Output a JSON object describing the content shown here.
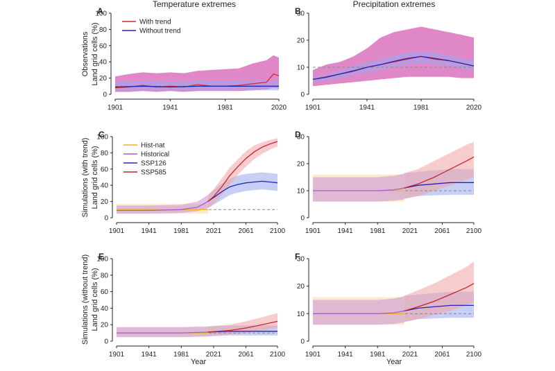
{
  "chart_data": {
    "type": "line",
    "column_titles": [
      "Temperature extremes",
      "Precipitation extremes"
    ],
    "row_ylabels": [
      [
        "Observations",
        "Land grid cells (%)"
      ],
      [
        "Simulations (with trend)",
        "Land grid cells (%)"
      ],
      [
        "Simulations (without trend)",
        "Land grid cells (%)"
      ]
    ],
    "xlabel": "Year",
    "colors": {
      "with_trend": "#d42a3a",
      "without_trend": "#2424b8",
      "hist_nat": "#f0b429",
      "historical": "#a65ccf",
      "ssp126": "#2424b8",
      "ssp585": "#c0262e",
      "band_obs": "#d65fb4",
      "band_hist_nat": "#f7d8a0",
      "band_historical": "#c98fd8",
      "band_ssp126": "#9aa8ee",
      "band_ssp585": "#f0a3a3",
      "reference": "#888888"
    },
    "panels": [
      {
        "letter": "A",
        "xticks": [
          "1901",
          "1941",
          "1981",
          "2020"
        ],
        "yticks": [
          "0",
          "20",
          "40",
          "60",
          "80",
          "100"
        ],
        "xlim": [
          1901,
          2020
        ],
        "ylim": [
          0,
          100
        ],
        "legend": [
          "With trend",
          "Without trend"
        ],
        "reference_line": 10,
        "series": [
          {
            "name": "With trend",
            "x": [
              1901,
              1911,
              1921,
              1931,
              1941,
              1951,
              1961,
              1971,
              1981,
              1991,
              2001,
              2011,
              2016,
              2020
            ],
            "y": [
              8,
              9,
              11,
              9,
              10,
              9,
              12,
              10,
              10,
              11,
              13,
              15,
              25,
              23
            ],
            "band_lo": [
              3,
              3,
              4,
              3,
              4,
              3,
              4,
              4,
              4,
              4,
              5,
              6,
              8,
              7
            ],
            "band_hi": [
              22,
              25,
              27,
              26,
              27,
              26,
              29,
              30,
              31,
              32,
              38,
              42,
              48,
              45
            ]
          },
          {
            "name": "Without trend",
            "x": [
              1901,
              1921,
              1941,
              1961,
              1981,
              2001,
              2020
            ],
            "y": [
              9,
              10,
              9,
              10,
              10,
              10,
              10
            ],
            "band_lo": [
              5,
              5,
              5,
              5,
              5,
              5,
              5
            ],
            "band_hi": [
              16,
              17,
              16,
              17,
              17,
              17,
              17
            ]
          }
        ]
      },
      {
        "letter": "B",
        "xticks": [
          "1901",
          "1941",
          "1981",
          "2020"
        ],
        "yticks": [
          "0",
          "10",
          "20",
          "30"
        ],
        "xlim": [
          1901,
          2020
        ],
        "ylim": [
          0,
          30
        ],
        "legend": [],
        "reference_line": 10,
        "series": [
          {
            "name": "With trend",
            "x": [
              1901,
              1911,
              1921,
              1931,
              1941,
              1951,
              1961,
              1971,
              1981,
              1991,
              2001,
              2011,
              2020
            ],
            "y": [
              5.5,
              6.5,
              7.5,
              8.5,
              10,
              11,
              12,
              13,
              14,
              13,
              12.5,
              11.5,
              10.5
            ],
            "band_lo": [
              3,
              3.5,
              4,
              4.5,
              5,
              5.5,
              6,
              6.5,
              6.5,
              6.5,
              6.5,
              6,
              6
            ],
            "band_hi": [
              9,
              11,
              12,
              14,
              17,
              21,
              23,
              24,
              25,
              24,
              23,
              22,
              21
            ]
          },
          {
            "name": "Without trend",
            "x": [
              1901,
              1911,
              1921,
              1931,
              1941,
              1951,
              1961,
              1971,
              1981,
              1991,
              2001,
              2011,
              2020
            ],
            "y": [
              5.5,
              6.3,
              7.5,
              8.7,
              10,
              11,
              12.2,
              13.3,
              14,
              13.3,
              12.5,
              11.5,
              10.5
            ],
            "band_lo": [
              4.5,
              5,
              6,
              7,
              8,
              9,
              10,
              11,
              11.5,
              11,
              10.5,
              9.5,
              9
            ],
            "band_hi": [
              6.5,
              7.5,
              9,
              10.5,
              12,
              13,
              14.5,
              15.5,
              16,
              15.5,
              14.5,
              13.5,
              12.5
            ]
          }
        ]
      },
      {
        "letter": "C",
        "xticks": [
          "1901",
          "1941",
          "1981",
          "2021",
          "2061",
          "2100"
        ],
        "yticks": [
          "0",
          "20",
          "40",
          "60",
          "80",
          "100"
        ],
        "xlim": [
          1901,
          2100
        ],
        "ylim": [
          0,
          100
        ],
        "legend": [
          "Hist-nat",
          "Historical",
          "SSP126",
          "SSP585"
        ],
        "reference_line": 10,
        "series": [
          {
            "name": "Hist-nat",
            "x": [
              1901,
              1941,
              1981,
              2014
            ],
            "y": [
              10,
              10,
              10,
              10
            ],
            "band_lo": [
              5,
              5,
              5,
              5
            ],
            "band_hi": [
              17,
              17,
              17,
              17
            ]
          },
          {
            "name": "Historical",
            "x": [
              1901,
              1941,
              1981,
              2001,
              2014
            ],
            "y": [
              9,
              9,
              10,
              13,
              20
            ],
            "band_lo": [
              5,
              5,
              6,
              8,
              12
            ],
            "band_hi": [
              15,
              15,
              16,
              20,
              28
            ]
          },
          {
            "name": "SSP126",
            "x": [
              2014,
              2021,
              2031,
              2041,
              2051,
              2061,
              2071,
              2081,
              2091,
              2100
            ],
            "y": [
              20,
              25,
              32,
              38,
              41,
              43,
              44,
              45,
              44,
              43
            ],
            "band_lo": [
              12,
              16,
              22,
              28,
              31,
              33,
              34,
              35,
              34,
              33
            ],
            "band_hi": [
              28,
              34,
              42,
              48,
              52,
              54,
              55,
              56,
              55,
              54
            ]
          },
          {
            "name": "SSP585",
            "x": [
              2014,
              2021,
              2031,
              2041,
              2051,
              2061,
              2071,
              2081,
              2091,
              2100
            ],
            "y": [
              20,
              26,
              38,
              52,
              63,
              73,
              81,
              87,
              91,
              94
            ],
            "band_lo": [
              12,
              17,
              28,
              41,
              53,
              63,
              72,
              79,
              84,
              88
            ],
            "band_hi": [
              28,
              35,
              48,
              62,
              72,
              82,
              89,
              93,
              96,
              98
            ]
          }
        ]
      },
      {
        "letter": "D",
        "xticks": [
          "1901",
          "1941",
          "1981",
          "2021",
          "2061",
          "2100"
        ],
        "yticks": [
          "0",
          "10",
          "20",
          "30"
        ],
        "xlim": [
          1901,
          2100
        ],
        "ylim": [
          0,
          30
        ],
        "legend": [],
        "reference_line": 10,
        "series": [
          {
            "name": "Hist-nat",
            "x": [
              1901,
              1941,
              1981,
              2014
            ],
            "y": [
              10,
              10,
              10,
              10
            ],
            "band_lo": [
              6,
              6,
              6,
              6
            ],
            "band_hi": [
              16,
              16,
              16,
              16
            ]
          },
          {
            "name": "Historical",
            "x": [
              1901,
              1941,
              1981,
              2001,
              2014
            ],
            "y": [
              10,
              10,
              10,
              10.3,
              11
            ],
            "band_lo": [
              6,
              6,
              6,
              6.3,
              6.8
            ],
            "band_hi": [
              15,
              15,
              15,
              15.5,
              16.3
            ]
          },
          {
            "name": "SSP126",
            "x": [
              2014,
              2031,
              2051,
              2071,
              2091,
              2100
            ],
            "y": [
              11,
              12,
              12.5,
              13,
              13,
              13
            ],
            "band_lo": [
              7,
              8,
              8.3,
              8.5,
              8.5,
              8.5
            ],
            "band_hi": [
              16.5,
              17,
              17.5,
              18,
              18,
              18
            ]
          },
          {
            "name": "SSP585",
            "x": [
              2014,
              2031,
              2051,
              2071,
              2091,
              2100
            ],
            "y": [
              11,
              12.5,
              15,
              18,
              21,
              22.5
            ],
            "band_lo": [
              7,
              8,
              10,
              12,
              14,
              15
            ],
            "band_hi": [
              16.5,
              18,
              21,
              24,
              27,
              28
            ]
          }
        ]
      },
      {
        "letter": "E",
        "xticks": [
          "1901",
          "1941",
          "1981",
          "2021",
          "2061",
          "2100"
        ],
        "yticks": [
          "0",
          "20",
          "40",
          "60",
          "80",
          "100"
        ],
        "xlim": [
          1901,
          2100
        ],
        "ylim": [
          0,
          100
        ],
        "legend": [],
        "reference_line": 10,
        "series": [
          {
            "name": "Hist-nat",
            "x": [
              1901,
              1941,
              1981,
              2014
            ],
            "y": [
              10,
              10,
              10,
              10
            ],
            "band_lo": [
              5,
              5,
              5,
              5
            ],
            "band_hi": [
              17,
              17,
              17,
              17
            ]
          },
          {
            "name": "Historical",
            "x": [
              1901,
              1941,
              1981,
              2014
            ],
            "y": [
              10,
              10,
              10,
              11
            ],
            "band_lo": [
              5,
              5,
              5,
              6
            ],
            "band_hi": [
              17,
              17,
              17,
              18
            ]
          },
          {
            "name": "SSP126",
            "x": [
              2014,
              2041,
              2061,
              2081,
              2100
            ],
            "y": [
              11,
              12,
              12,
              12,
              12
            ],
            "band_lo": [
              6,
              7,
              7,
              7,
              7
            ],
            "band_hi": [
              18,
              19,
              19,
              19,
              19
            ]
          },
          {
            "name": "SSP585",
            "x": [
              2014,
              2041,
              2061,
              2081,
              2100
            ],
            "y": [
              11,
              13,
              16,
              20,
              24
            ],
            "band_lo": [
              6,
              8,
              10,
              13,
              16
            ],
            "band_hi": [
              18,
              20,
              24,
              29,
              34
            ]
          }
        ]
      },
      {
        "letter": "F",
        "xticks": [
          "1901",
          "1941",
          "1981",
          "2021",
          "2061",
          "2100"
        ],
        "yticks": [
          "0",
          "10",
          "20",
          "30"
        ],
        "xlim": [
          1901,
          2100
        ],
        "ylim": [
          0,
          30
        ],
        "legend": [],
        "reference_line": 10,
        "series": [
          {
            "name": "Hist-nat",
            "x": [
              1901,
              1941,
              1981,
              2014
            ],
            "y": [
              10,
              10,
              10,
              10
            ],
            "band_lo": [
              6,
              6,
              6,
              6
            ],
            "band_hi": [
              16,
              16,
              16,
              16
            ]
          },
          {
            "name": "Historical",
            "x": [
              1901,
              1941,
              1981,
              2001,
              2014
            ],
            "y": [
              10,
              10,
              10,
              10.3,
              11
            ],
            "band_lo": [
              6,
              6,
              6,
              6.3,
              6.8
            ],
            "band_hi": [
              15,
              15,
              15,
              15.5,
              16.3
            ]
          },
          {
            "name": "SSP126",
            "x": [
              2014,
              2031,
              2051,
              2071,
              2091,
              2100
            ],
            "y": [
              11,
              12,
              12.5,
              13,
              13,
              13
            ],
            "band_lo": [
              7,
              8,
              8.3,
              8.5,
              8.5,
              8.5
            ],
            "band_hi": [
              16.5,
              17,
              17.5,
              18,
              18,
              18
            ]
          },
          {
            "name": "SSP585",
            "x": [
              2014,
              2031,
              2051,
              2071,
              2091,
              2100
            ],
            "y": [
              11,
              12.5,
              14.5,
              17,
              19.5,
              21
            ],
            "band_lo": [
              7,
              8,
              9.5,
              11,
              13,
              14
            ],
            "band_hi": [
              16.5,
              18.5,
              21,
              24,
              27,
              29
            ]
          }
        ]
      }
    ]
  }
}
